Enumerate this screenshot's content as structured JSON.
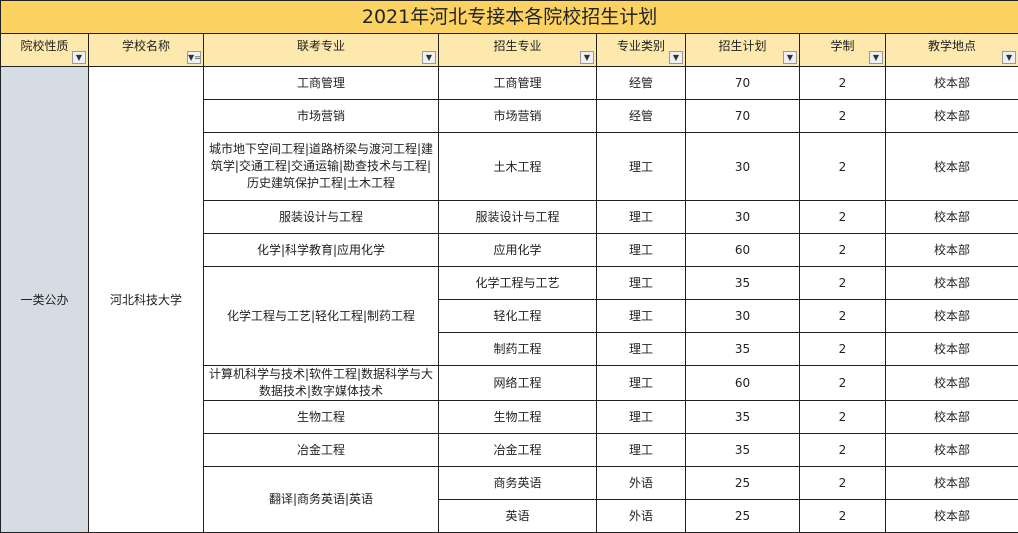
{
  "title": "2021年河北专接本各院校招生计划",
  "headers": [
    "院校性质",
    "学校名称",
    "联考专业",
    "招生专业",
    "专业类别",
    "招生计划",
    "学制",
    "教学地点"
  ],
  "filter_icons": [
    "dropdown-icon",
    "filter-active-icon",
    "dropdown-icon",
    "dropdown-icon",
    "dropdown-icon",
    "dropdown-icon",
    "dropdown-icon",
    "dropdown-icon"
  ],
  "school_type": "一类公办",
  "school_name": "河北科技大学",
  "exam_groups": [
    {
      "name": "工商管理"
    },
    {
      "name": "市场营销"
    },
    {
      "name": "城市地下空间工程|道路桥梁与渡河工程|建筑学|交通工程|交通运输|勘查技术与工程|历史建筑保护工程|土木工程"
    },
    {
      "name": "服装设计与工程"
    },
    {
      "name": "化学|科学教育|应用化学"
    },
    {
      "name": "化学工程与工艺|轻化工程|制药工程"
    },
    {
      "name": "计算机科学与技术|软件工程|数据科学与大数据技术|数字媒体技术"
    },
    {
      "name": "生物工程"
    },
    {
      "name": "冶金工程"
    },
    {
      "name": "翻译|商务英语|英语"
    }
  ],
  "rows": [
    {
      "major": "工商管理",
      "category": "经管",
      "plan": "70",
      "years": "2",
      "location": "校本部"
    },
    {
      "major": "市场营销",
      "category": "经管",
      "plan": "70",
      "years": "2",
      "location": "校本部"
    },
    {
      "major": "土木工程",
      "category": "理工",
      "plan": "30",
      "years": "2",
      "location": "校本部"
    },
    {
      "major": "服装设计与工程",
      "category": "理工",
      "plan": "30",
      "years": "2",
      "location": "校本部"
    },
    {
      "major": "应用化学",
      "category": "理工",
      "plan": "60",
      "years": "2",
      "location": "校本部"
    },
    {
      "major": "化学工程与工艺",
      "category": "理工",
      "plan": "35",
      "years": "2",
      "location": "校本部"
    },
    {
      "major": "轻化工程",
      "category": "理工",
      "plan": "30",
      "years": "2",
      "location": "校本部"
    },
    {
      "major": "制药工程",
      "category": "理工",
      "plan": "35",
      "years": "2",
      "location": "校本部"
    },
    {
      "major": "网络工程",
      "category": "理工",
      "plan": "60",
      "years": "2",
      "location": "校本部"
    },
    {
      "major": "生物工程",
      "category": "理工",
      "plan": "35",
      "years": "2",
      "location": "校本部"
    },
    {
      "major": "冶金工程",
      "category": "理工",
      "plan": "35",
      "years": "2",
      "location": "校本部"
    },
    {
      "major": "商务英语",
      "category": "外语",
      "plan": "25",
      "years": "2",
      "location": "校本部"
    },
    {
      "major": "英语",
      "category": "外语",
      "plan": "25",
      "years": "2",
      "location": "校本部"
    }
  ],
  "colors": {
    "title_bg": "#fcd362",
    "header_bg": "#fde8ad",
    "type_col_bg": "#d6dce4"
  }
}
